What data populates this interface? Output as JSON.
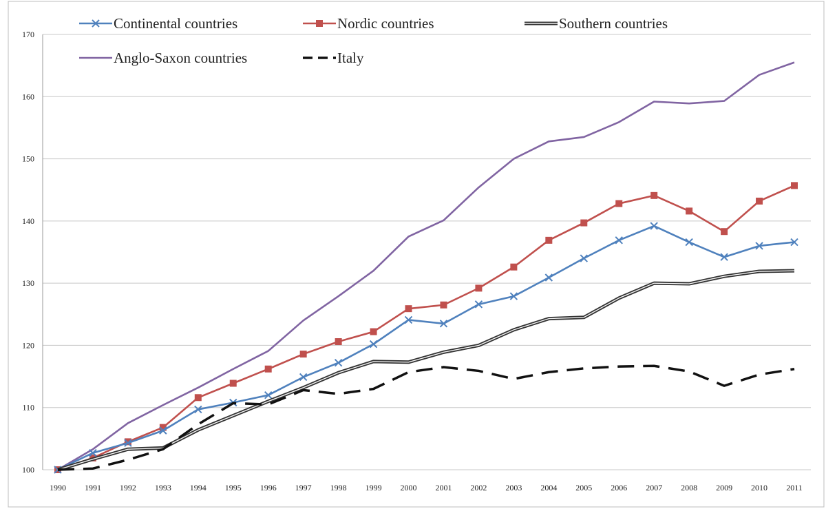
{
  "chart_data": {
    "type": "line",
    "title": "",
    "xlabel": "",
    "ylabel": "",
    "ylim": [
      100,
      170
    ],
    "yticks": [
      "100",
      "110",
      "120",
      "130",
      "140",
      "150",
      "160",
      "170"
    ],
    "ytick_values": [
      100,
      110,
      120,
      130,
      140,
      150,
      160,
      170
    ],
    "grid": "horizontal",
    "legend_position": "top",
    "x": [
      "1990",
      "1991",
      "1992",
      "1993",
      "1994",
      "1995",
      "1996",
      "1997",
      "1998",
      "1999",
      "2000",
      "2001",
      "2002",
      "2003",
      "2004",
      "2005",
      "2006",
      "2007",
      "2008",
      "2009",
      "2010",
      "2011"
    ],
    "series": [
      {
        "name": "Continental countries",
        "color": "#4f81bd",
        "style": "line-x-marker",
        "values": [
          100,
          102.7,
          104.3,
          106.3,
          109.7,
          110.8,
          112.0,
          114.9,
          117.2,
          120.2,
          124.1,
          123.5,
          126.6,
          127.9,
          130.9,
          134.0,
          136.9,
          139.2,
          136.6,
          134.2,
          136.0,
          136.6
        ]
      },
      {
        "name": "Nordic countries",
        "color": "#c0504d",
        "style": "line-square-marker",
        "values": [
          100,
          101.9,
          104.5,
          106.8,
          111.6,
          113.9,
          116.2,
          118.6,
          120.6,
          122.2,
          125.9,
          126.5,
          129.2,
          132.6,
          136.9,
          139.7,
          142.8,
          144.1,
          141.6,
          138.3,
          143.2,
          145.7
        ]
      },
      {
        "name": "Southern countries",
        "color": "#333333",
        "style": "double-line",
        "values": [
          100,
          101.7,
          103.3,
          103.5,
          106.4,
          108.7,
          111.0,
          113.2,
          115.6,
          117.4,
          117.3,
          118.9,
          120.0,
          122.5,
          124.3,
          124.5,
          127.6,
          130.0,
          129.9,
          131.1,
          131.9,
          132.0
        ]
      },
      {
        "name": "Anglo-Saxon countries",
        "color": "#8064a2",
        "style": "line",
        "values": [
          100,
          103.3,
          107.5,
          110.4,
          113.2,
          116.2,
          119.1,
          124.0,
          127.9,
          132.0,
          137.5,
          140.1,
          145.4,
          150.0,
          152.8,
          153.5,
          155.9,
          159.2,
          158.9,
          159.3,
          163.5,
          165.5
        ]
      },
      {
        "name": "Italy",
        "color": "#111111",
        "style": "dashed",
        "values": [
          100,
          100.2,
          101.6,
          103.3,
          107.3,
          110.7,
          110.5,
          112.8,
          112.2,
          113.0,
          115.7,
          116.5,
          115.9,
          114.6,
          115.7,
          116.3,
          116.6,
          116.7,
          115.8,
          113.5,
          115.3,
          116.2
        ]
      }
    ]
  }
}
